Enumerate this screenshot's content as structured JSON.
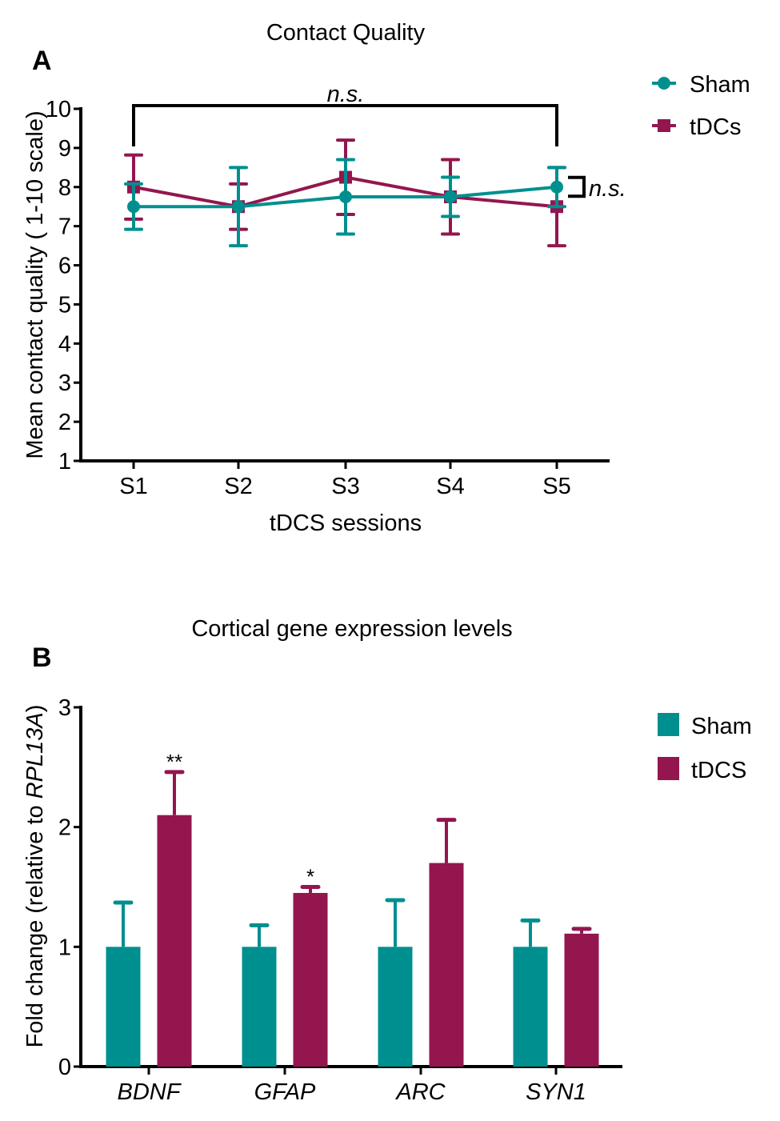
{
  "colors": {
    "sham": "#008F8F",
    "tdcs": "#93164F",
    "axis": "#000000"
  },
  "chart_data": [
    {
      "panel": "A",
      "type": "line",
      "title": "Contact Quality",
      "xlabel": "tDCS sessions",
      "ylabel": "Mean contact quality ( 1-10 scale)",
      "ylim": [
        1,
        10
      ],
      "yticks": [
        "1",
        "2",
        "3",
        "4",
        "5",
        "6",
        "7",
        "8",
        "9",
        "10"
      ],
      "categories": [
        "S1",
        "S2",
        "S3",
        "S4",
        "S5"
      ],
      "legend": "top-right",
      "series": [
        {
          "name": "Sham",
          "marker": "circle",
          "values": [
            7.5,
            7.5,
            7.75,
            7.75,
            8.0
          ],
          "errors": [
            0.58,
            1.0,
            0.95,
            0.5,
            0.5
          ]
        },
        {
          "name": "tDCs",
          "marker": "square",
          "values": [
            8.0,
            7.5,
            8.25,
            7.75,
            7.5
          ],
          "errors": [
            0.82,
            0.58,
            0.95,
            0.95,
            1.0
          ]
        }
      ],
      "annotations": [
        {
          "text": "n.s.",
          "type": "bracket",
          "between": [
            "S1",
            "S5"
          ]
        },
        {
          "text": "n.s.",
          "type": "bracket",
          "between": [
            "Sham S5",
            "tDCs S5"
          ]
        }
      ]
    },
    {
      "panel": "B",
      "type": "bar",
      "title": "Cortical gene expression levels",
      "xlabel": "",
      "ylabel_prefix": "Fold change (relative to ",
      "ylabel_italic": "RPL13A",
      "ylabel_suffix": ")",
      "ylim": [
        0,
        3
      ],
      "yticks": [
        "0",
        "1",
        "2",
        "3"
      ],
      "categories": [
        "BDNF",
        "GFAP",
        "ARC",
        "SYN1"
      ],
      "legend": "top-right",
      "series": [
        {
          "name": "Sham",
          "values": [
            1.0,
            1.0,
            1.0,
            1.0
          ],
          "errors": [
            0.37,
            0.18,
            0.39,
            0.22
          ]
        },
        {
          "name": "tDCS",
          "values": [
            2.1,
            1.45,
            1.7,
            1.11
          ],
          "errors": [
            0.36,
            0.05,
            0.36,
            0.04
          ]
        }
      ],
      "significance": [
        "**",
        "*",
        "",
        ""
      ]
    }
  ]
}
